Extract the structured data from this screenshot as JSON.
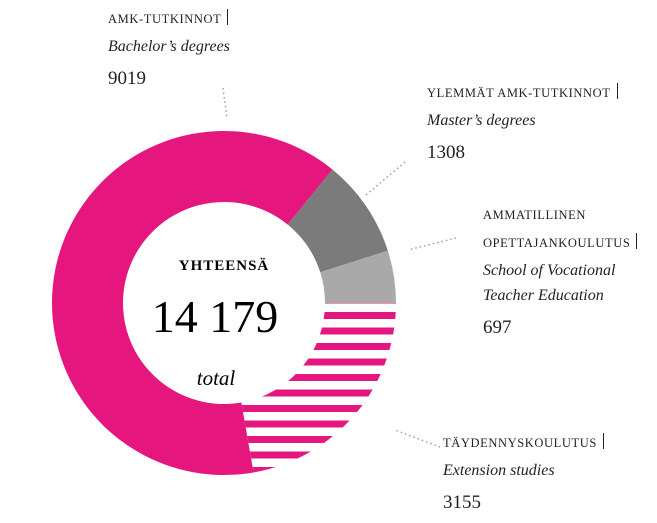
{
  "chart_data": {
    "type": "donut",
    "categories": [
      "AMK-TUTKINNOT",
      "YLEMMÄT AMK-TUTKINNOT",
      "AMMATILLINEN OPETTAJANKOULUTUS",
      "TÄYDENNYSKOULUTUS"
    ],
    "subtitles": [
      "Bachelor’s degrees",
      "Master’s degrees",
      "School of Vocational Teacher Education",
      "Extension studies"
    ],
    "values": [
      9019,
      1308,
      697,
      3155
    ],
    "colors": [
      "#e5177e",
      "#7b7b7b",
      "#a9a9a9",
      "#e5177e"
    ],
    "hatched": [
      false,
      false,
      false,
      true
    ],
    "center_title": "YHTEENSÄ",
    "total": {
      "value": 14179,
      "label": "14 179"
    },
    "total_caption": "total"
  }
}
